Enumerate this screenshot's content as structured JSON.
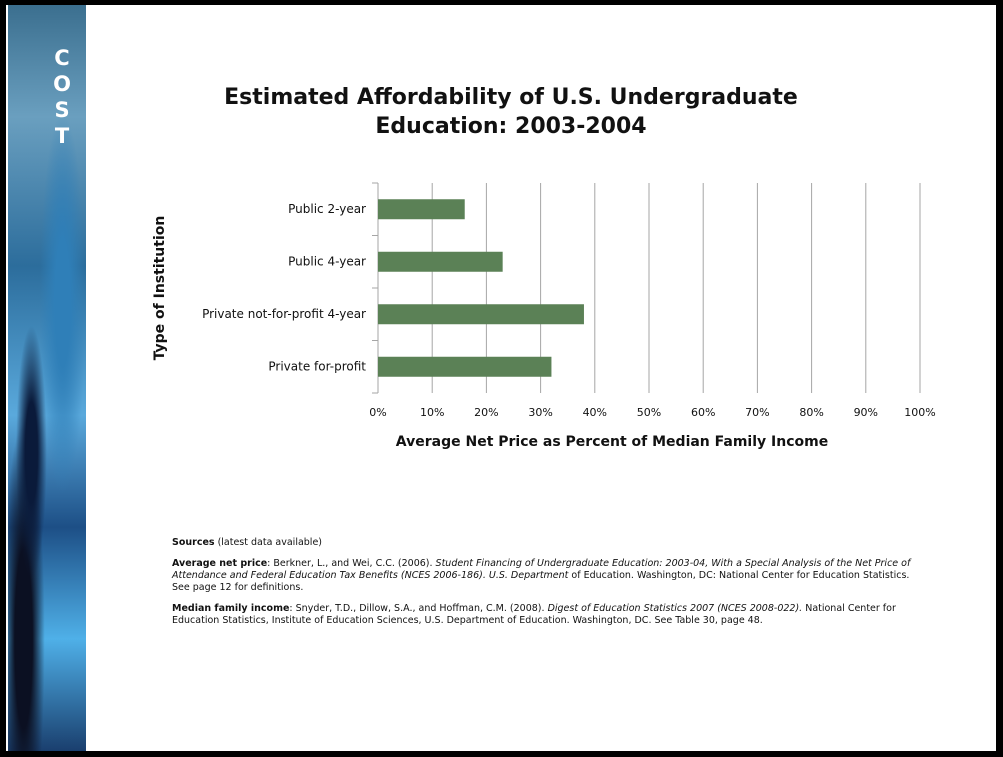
{
  "chart_data": {
    "type": "barh",
    "title": [
      "Estimated Affordability of U.S. Undergraduate",
      "Education: 2003-2004"
    ],
    "x_label": "Average Net Price as Percent of Median Family Income",
    "y_label": "Type of Institution",
    "categories": [
      "Public 2-year",
      "Public 4-year",
      "Private not-for-profit 4-year",
      "Private for-profit"
    ],
    "values": [
      16,
      23,
      38,
      32
    ],
    "color": "#5b8156",
    "xlim": [
      0,
      100
    ],
    "xticks": [
      {
        "value": 0,
        "label": "0%"
      },
      {
        "value": 10,
        "label": "10%"
      },
      {
        "value": 20,
        "label": "20%"
      },
      {
        "value": 30,
        "label": "30%"
      },
      {
        "value": 40,
        "label": "40%"
      },
      {
        "value": 50,
        "label": "50%"
      },
      {
        "value": 60,
        "label": "60%"
      },
      {
        "value": 70,
        "label": "70%"
      },
      {
        "value": 80,
        "label": "80%"
      },
      {
        "value": 90,
        "label": "90%"
      },
      {
        "value": 100,
        "label": "100%"
      }
    ],
    "grid": true
  },
  "sidebar": {
    "letters": [
      "C",
      "O",
      "S",
      "T"
    ]
  },
  "sources": [
    {
      "label": "Sources",
      "text": " (latest data available)"
    },
    {
      "label": "Average net price",
      "text": ": Berkner, L., and Wei, C.C. (2006). ",
      "italic": "Student Financing of Undergraduate Education: 2003-04, With a Special Analysis of the Net Price of Attendance and Federal Education Tax Benefits (NCES 2006-186). U.S. Department",
      "rest": " of Education. Washington, DC: National Center for Education Statistics. See page 12 for definitions."
    },
    {
      "label": "Median family income",
      "text": ": Snyder, T.D., Dillow, S.A., and Hoffman, C.M. (2008). ",
      "italic": "Digest of Education Statistics 2007 (NCES 2008-022).",
      "rest": " National Center for Education Statistics, Institute of Education Sciences, U.S. Department of Education. Washington, DC. See Table 30, page 48."
    }
  ]
}
